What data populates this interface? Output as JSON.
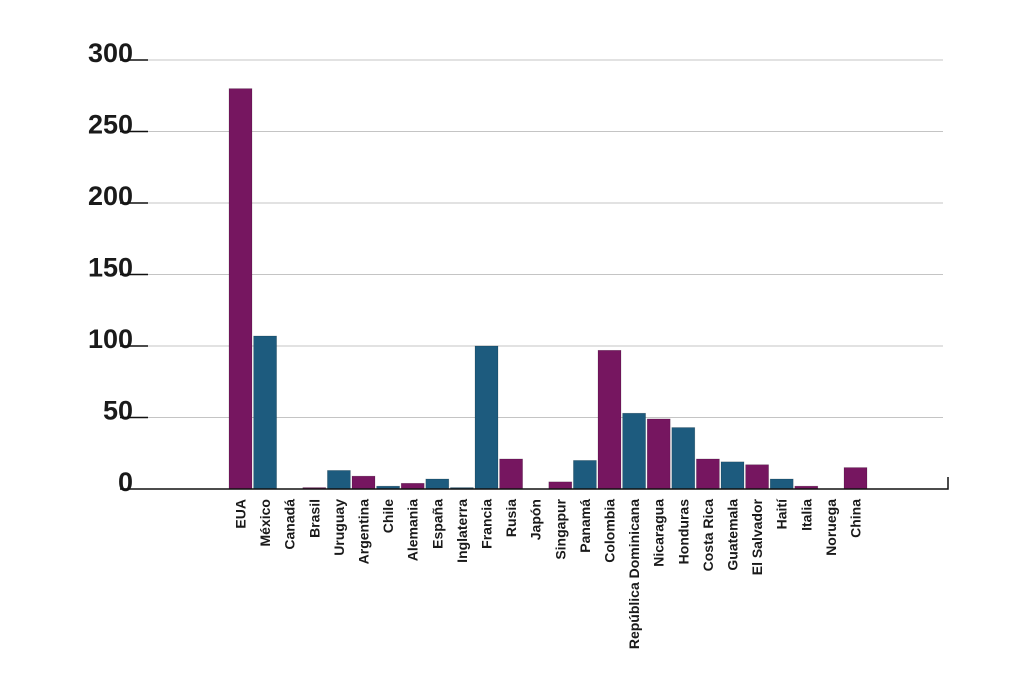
{
  "chart_data": {
    "type": "bar",
    "title": "",
    "xlabel": "",
    "ylabel": "",
    "ylim": [
      0,
      300
    ],
    "yticks": [
      0,
      50,
      100,
      150,
      200,
      250,
      300
    ],
    "grid": true,
    "legend": "none",
    "colors": {
      "purple": "#761660",
      "blue": "#1d5b7e"
    },
    "categories": [
      "EUA",
      "México",
      "Canadá",
      "Brasil",
      "Uruguay",
      "Argentina",
      "Chile",
      "Alemania",
      "España",
      "Inglaterra",
      "Francia",
      "Rusia",
      "Japón",
      "Singapur",
      "Panamá",
      "Colombia",
      "República Dominicana",
      "Nicaragua",
      "Honduras",
      "Costa Rica",
      "Guatemala",
      "El Salvador",
      "Haití",
      "Italia",
      "Noruega",
      "China"
    ],
    "values": [
      280,
      107,
      0,
      1,
      13,
      9,
      2,
      4,
      7,
      1,
      100,
      21,
      0,
      5,
      20,
      97,
      53,
      49,
      43,
      21,
      19,
      17,
      7,
      2,
      0,
      15
    ],
    "bar_colors": [
      "purple",
      "blue",
      "blue",
      "purple",
      "blue",
      "purple",
      "blue",
      "purple",
      "blue",
      "blue",
      "blue",
      "purple",
      "blue",
      "purple",
      "blue",
      "purple",
      "blue",
      "purple",
      "blue",
      "purple",
      "blue",
      "purple",
      "blue",
      "purple",
      "blue",
      "purple"
    ]
  }
}
